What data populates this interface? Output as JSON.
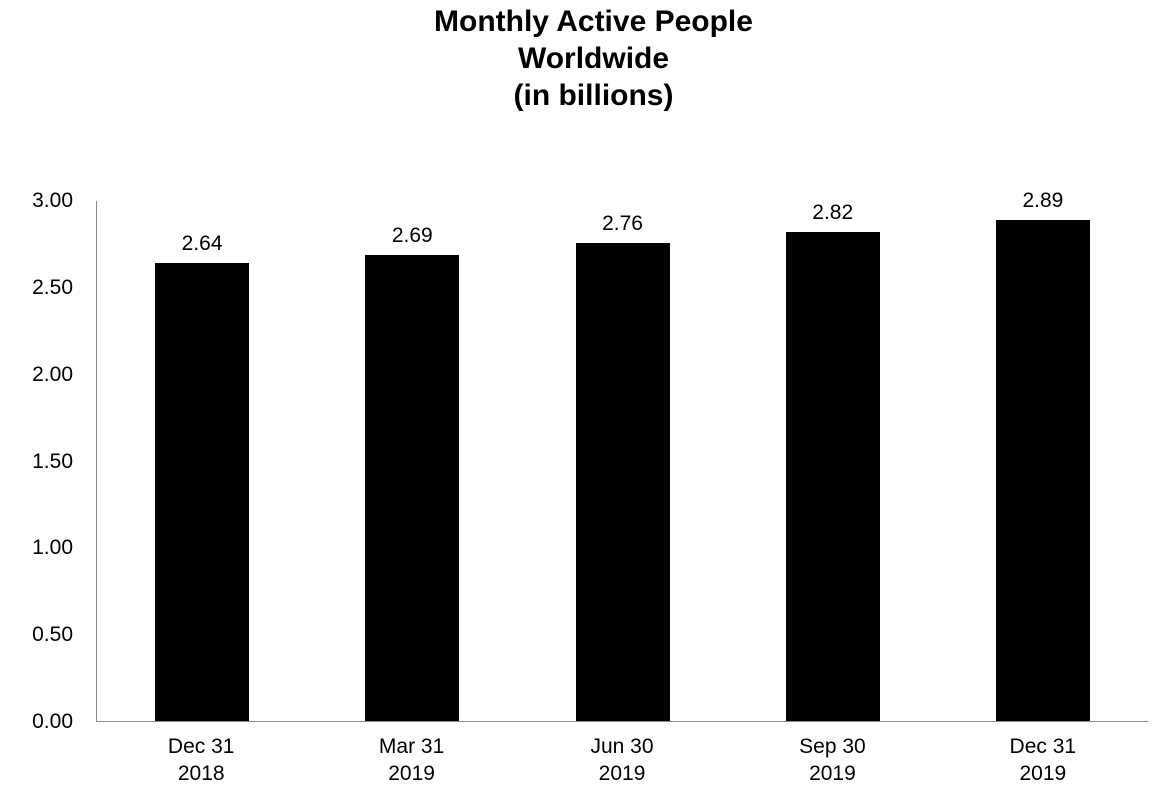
{
  "title": {
    "line1": "Monthly Active People",
    "line2": "Worldwide",
    "line3": "(in billions)"
  },
  "chart_data": {
    "type": "bar",
    "title": "Monthly Active People Worldwide (in billions)",
    "title_lines": [
      "Monthly Active People",
      "Worldwide",
      "(in billions)"
    ],
    "categories": [
      [
        "Dec 31",
        "2018"
      ],
      [
        "Mar 31",
        "2019"
      ],
      [
        "Jun 30",
        "2019"
      ],
      [
        "Sep 30",
        "2019"
      ],
      [
        "Dec 31",
        "2019"
      ]
    ],
    "values": [
      2.64,
      2.69,
      2.76,
      2.82,
      2.89
    ],
    "data_labels": [
      "2.64",
      "2.69",
      "2.76",
      "2.82",
      "2.89"
    ],
    "xlabel": "",
    "ylabel": "",
    "ylim": [
      0,
      3.0
    ],
    "yticks": [
      "0.00",
      "0.50",
      "1.00",
      "1.50",
      "2.00",
      "2.50",
      "3.00"
    ],
    "grid": false,
    "legend": false,
    "bar_color": "#000000",
    "axis_color": "#8a8a8a",
    "text_color": "#000000",
    "background_color": "#ffffff"
  }
}
